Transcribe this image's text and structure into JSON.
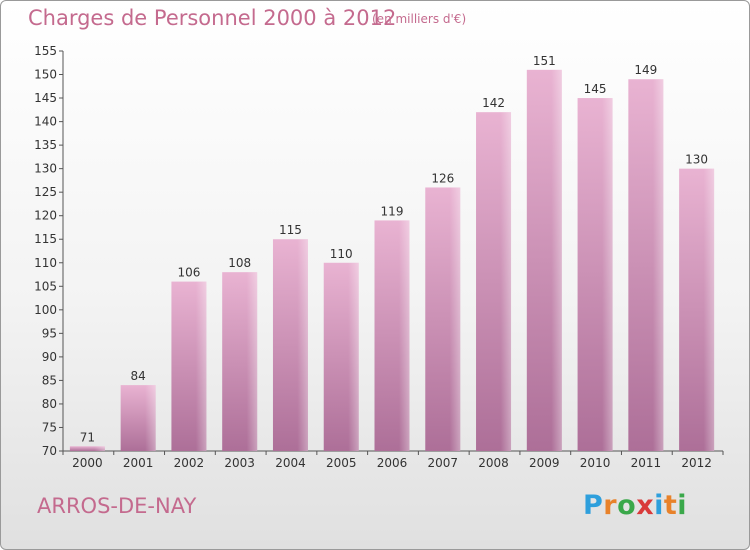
{
  "header": {
    "title": "Charges de Personnel 2000 à 2012",
    "subtitle": "(en milliers d'€)"
  },
  "footer": {
    "commune": "ARROS-DE-NAY",
    "logo": {
      "text": "Proxiti",
      "letters": [
        "P",
        "r",
        "o",
        "x",
        "i",
        "t",
        "i"
      ],
      "colors": [
        "#2e9fdc",
        "#e8822a",
        "#3aa84a",
        "#d93a3a",
        "#2e9fdc",
        "#e8822a",
        "#3aa84a"
      ]
    }
  },
  "colors": {
    "bar_top": "#e9b3d2",
    "bar_bottom": "#ad6f98",
    "text": "#333333",
    "grid": "#bbbbbb",
    "accent": "#c46a8e"
  },
  "chart_data": {
    "type": "bar",
    "categories": [
      "2000",
      "2001",
      "2002",
      "2003",
      "2004",
      "2005",
      "2006",
      "2007",
      "2008",
      "2009",
      "2010",
      "2011",
      "2012"
    ],
    "values": [
      71,
      84,
      106,
      108,
      115,
      110,
      119,
      126,
      142,
      151,
      145,
      149,
      130
    ],
    "ylim": [
      70,
      155
    ],
    "yticks": [
      70,
      75,
      80,
      85,
      90,
      95,
      100,
      105,
      110,
      115,
      120,
      125,
      130,
      135,
      140,
      145,
      150,
      155
    ],
    "grid": false,
    "data_labels": true
  }
}
